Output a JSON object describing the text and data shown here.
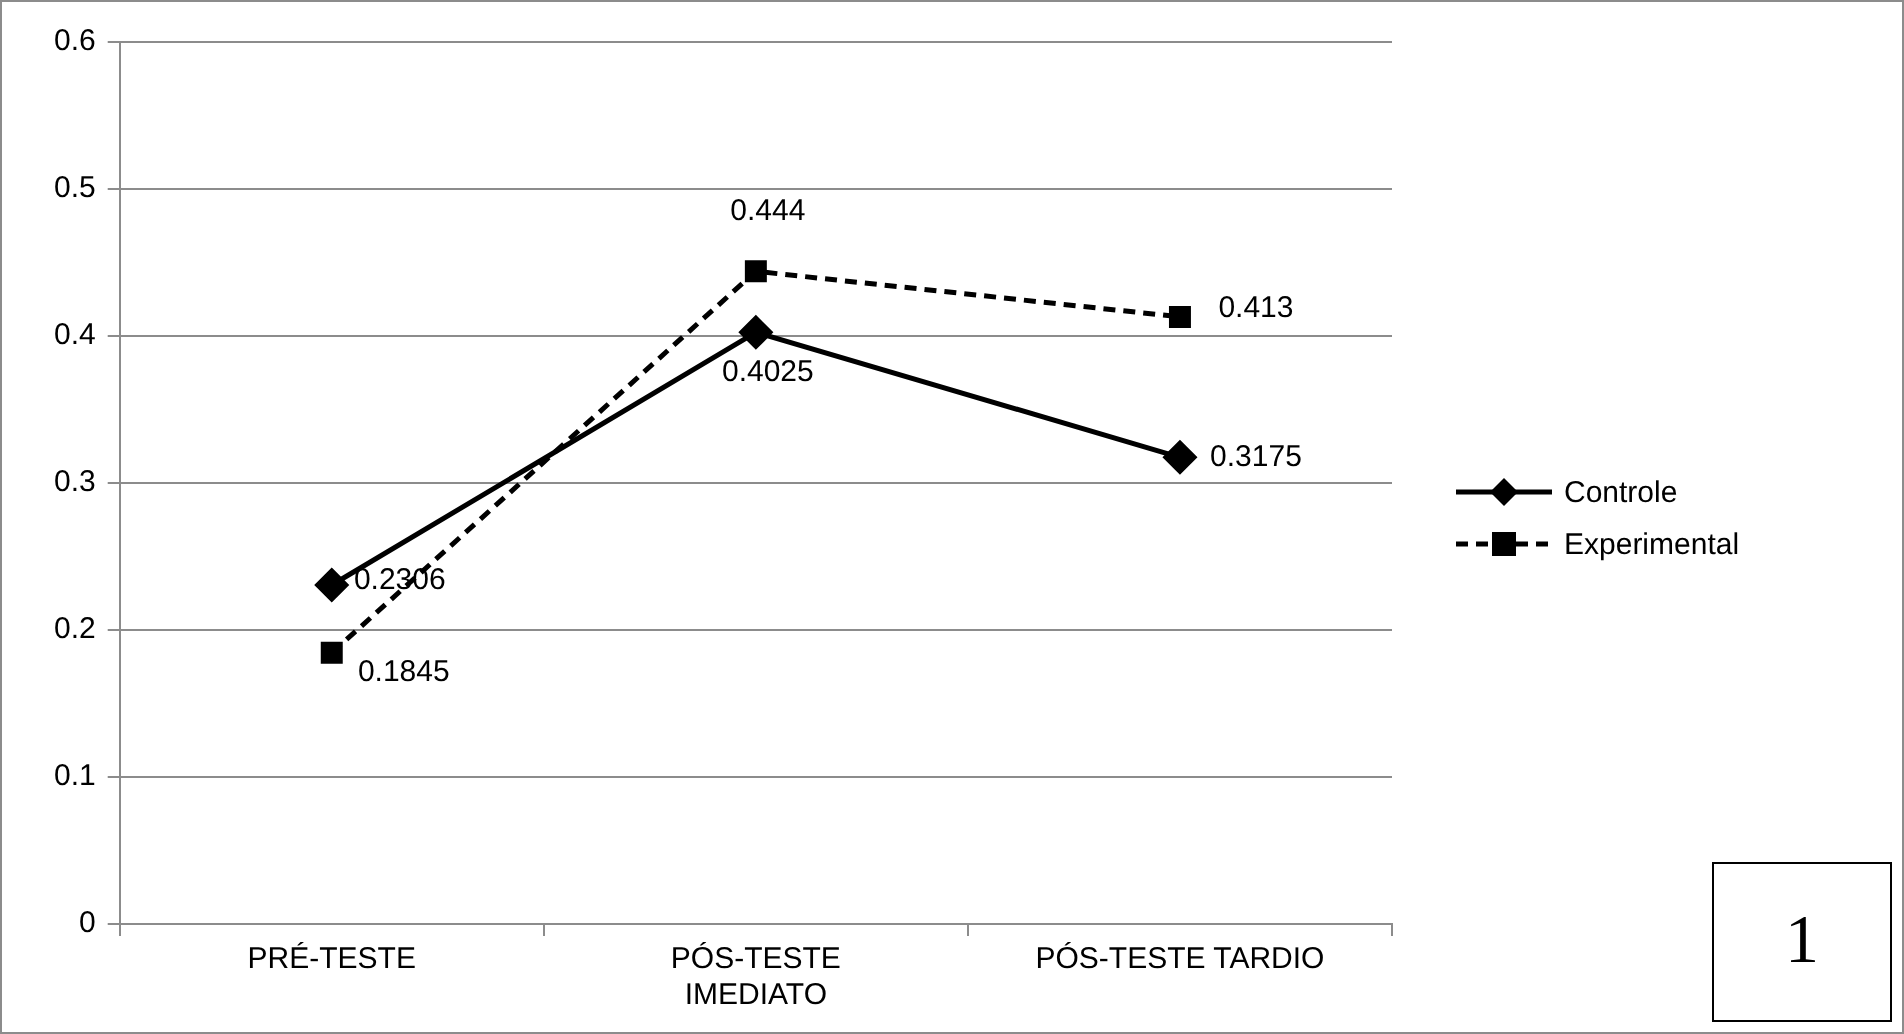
{
  "chart_data": {
    "type": "line",
    "categories": [
      "PRÉ-TESTE",
      "PÓS-TESTE IMEDIATO",
      "PÓS-TESTE TARDIO"
    ],
    "series": [
      {
        "name": "Controle",
        "color": "#000000",
        "values": [
          0.2306,
          0.4025,
          0.3175
        ],
        "marker": "diamond",
        "line_style": "solid"
      },
      {
        "name": "Experimental",
        "color": "#000000",
        "values": [
          0.1845,
          0.444,
          0.413
        ],
        "marker": "square",
        "line_style": "dashed"
      }
    ],
    "ylim": [
      0,
      0.6
    ],
    "yticks": [
      0,
      0.1,
      0.2,
      0.3,
      0.4,
      0.5,
      0.6
    ],
    "grid": "y",
    "legend": "right",
    "data_labels": true,
    "annotations": [
      "1"
    ]
  }
}
